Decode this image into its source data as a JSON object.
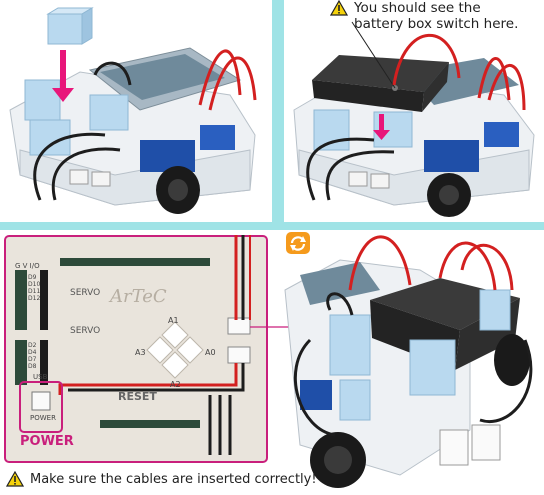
{
  "top_right": {
    "note_line1": "You should see the",
    "note_line2": "battery box switch here.",
    "warning_icon": "warning-triangle-icon"
  },
  "bottom": {
    "power_label": "POWER",
    "footer_note": "Make sure the cables are inserted correctly!",
    "warning_icon": "warning-triangle-icon",
    "rotate_icon": "rotate-arrows-icon",
    "board_logo": "ArTeC",
    "board_labels": {
      "servo_top": "SERVO",
      "servo_bottom": "SERVO",
      "reset": "RESET",
      "power_small": "POWER",
      "usb": "USB",
      "a1": "A1",
      "a3": "A3",
      "a0": "A0",
      "a2": "A2",
      "pins_left": [
        "D9",
        "D10",
        "D11",
        "D12",
        "D2",
        "D4",
        "D7",
        "D8"
      ],
      "gvd": "G V I/O"
    }
  },
  "colors": {
    "background": "#9fe3e6",
    "highlight": "#c91f7c",
    "board": "#e9e4dc",
    "battery": "#2b2b2b",
    "cable_red": "#d32020",
    "cable_black": "#1d1d1d",
    "block_blue": "#b9d9ef",
    "block_white": "#eef3f6",
    "servo_blue": "#1f4fa8"
  }
}
